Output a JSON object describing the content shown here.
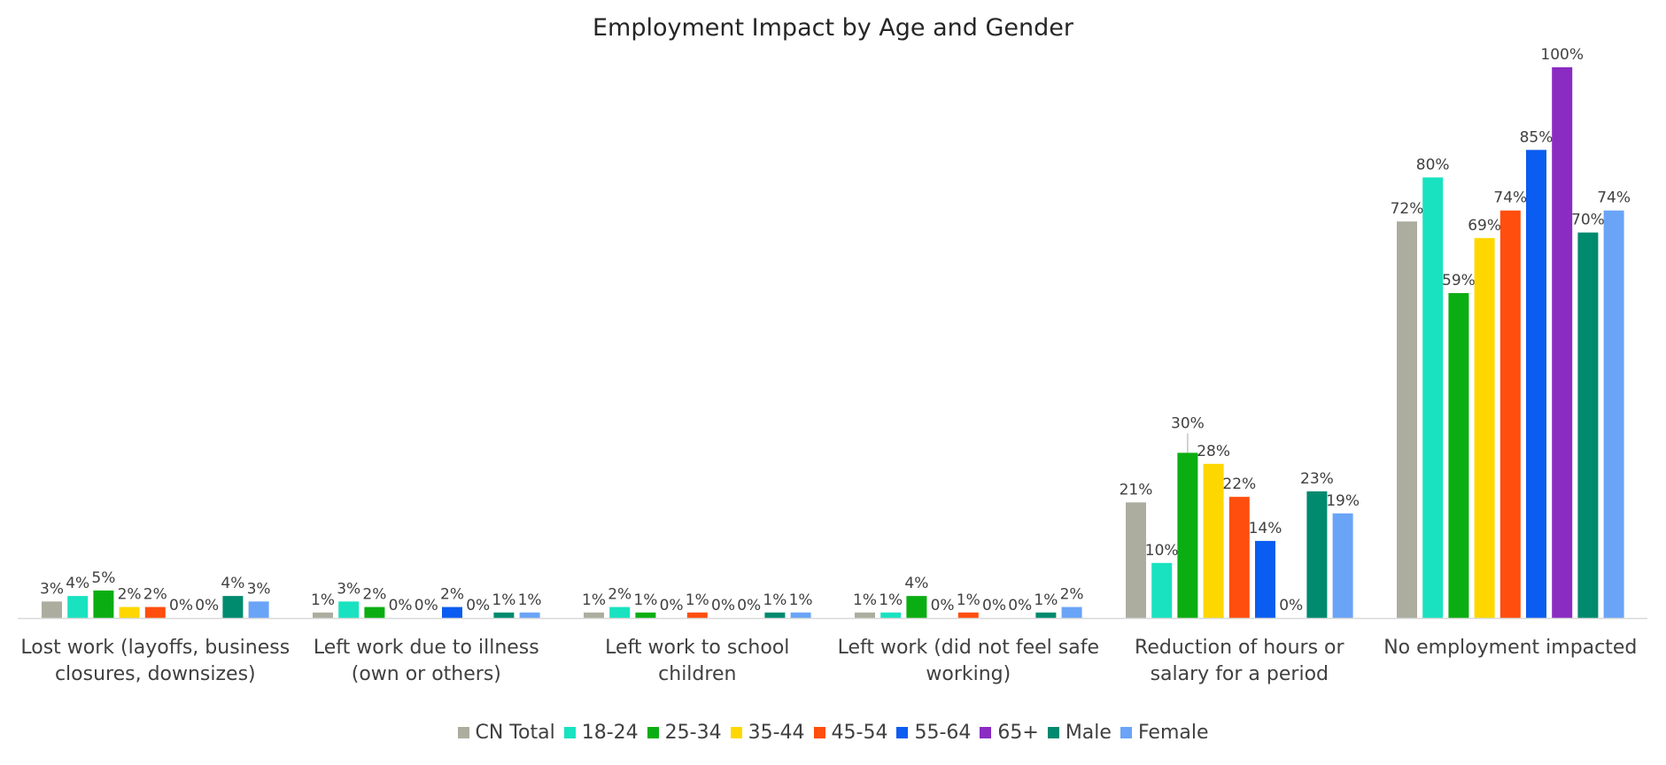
{
  "chart_data": {
    "type": "bar",
    "title": "Employment Impact by Age and Gender",
    "ylim": [
      0,
      100
    ],
    "grid": false,
    "legend_position": "bottom",
    "categories": [
      [
        "Lost work (layoffs, business",
        "closures, downsizes)"
      ],
      [
        "Left work due to illness",
        "(own or others)"
      ],
      [
        "Left work to school",
        "children"
      ],
      [
        "Left work (did not feel safe",
        "working)"
      ],
      [
        "Reduction of hours or",
        "salary for a period"
      ],
      [
        "No employment impacted"
      ]
    ],
    "series": [
      {
        "name": "CN Total",
        "color": "#ADAD9F",
        "values": [
          3,
          1,
          1,
          1,
          21,
          72
        ],
        "labels": [
          "3%",
          "1%",
          "1%",
          "1%",
          "21%",
          "72%"
        ]
      },
      {
        "name": "18-24",
        "color": "#19E2C0",
        "values": [
          4,
          3,
          2,
          1,
          10,
          80
        ],
        "labels": [
          "4%",
          "3%",
          "2%",
          "1%",
          "10%",
          "80%"
        ]
      },
      {
        "name": "25-34",
        "color": "#0BAE12",
        "values": [
          5,
          2,
          1,
          4,
          30,
          59
        ],
        "labels": [
          "5%",
          "2%",
          "1%",
          "4%",
          "30%",
          "59%"
        ]
      },
      {
        "name": "35-44",
        "color": "#FFD700",
        "values": [
          2,
          0,
          0,
          0,
          28,
          69
        ],
        "labels": [
          "2%",
          "0%",
          "0%",
          "0%",
          "28%",
          "69%"
        ]
      },
      {
        "name": "45-54",
        "color": "#FF4E0E",
        "values": [
          2,
          0,
          1,
          1,
          22,
          74
        ],
        "labels": [
          "2%",
          "0%",
          "1%",
          "1%",
          "22%",
          "74%"
        ]
      },
      {
        "name": "55-64",
        "color": "#0B5CF0",
        "values": [
          0,
          2,
          0,
          0,
          14,
          85
        ],
        "labels": [
          "0%",
          "2%",
          "0%",
          "0%",
          "14%",
          "85%"
        ]
      },
      {
        "name": "65+",
        "color": "#8A2BC2",
        "values": [
          0,
          0,
          0,
          0,
          0,
          100
        ],
        "labels": [
          "0%",
          "0%",
          "0%",
          "0%",
          "0%",
          "100%"
        ]
      },
      {
        "name": "Male",
        "color": "#008A6E",
        "values": [
          4,
          1,
          1,
          1,
          23,
          70
        ],
        "labels": [
          "4%",
          "1%",
          "1%",
          "1%",
          "23%",
          "70%"
        ]
      },
      {
        "name": "Female",
        "color": "#6AA4F7",
        "values": [
          3,
          1,
          1,
          2,
          19,
          74
        ],
        "labels": [
          "3%",
          "1%",
          "1%",
          "2%",
          "19%",
          "74%"
        ]
      }
    ]
  }
}
